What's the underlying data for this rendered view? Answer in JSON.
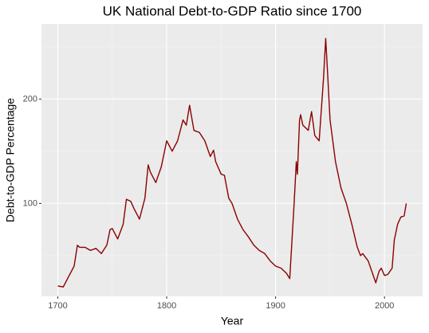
{
  "chart_data": {
    "type": "line",
    "title": "UK National Debt-to-GDP Ratio since 1700",
    "x_label": "Year",
    "y_label": "Debt-to-GDP Percentage",
    "color": "#8b0000",
    "grid": true,
    "xlim": [
      1685,
      2035
    ],
    "ylim": [
      11,
      272
    ],
    "xticks": [
      1700,
      1800,
      1900,
      2000
    ],
    "yticks": [
      100,
      200
    ],
    "xminorticks": [
      1750,
      1850,
      1950
    ],
    "yminorticks": [
      50,
      150,
      250
    ],
    "x": [
      1700,
      1705,
      1710,
      1715,
      1718,
      1720,
      1725,
      1730,
      1735,
      1740,
      1745,
      1748,
      1750,
      1755,
      1760,
      1763,
      1767,
      1770,
      1775,
      1780,
      1783,
      1785,
      1790,
      1795,
      1800,
      1805,
      1810,
      1815,
      1818,
      1821,
      1825,
      1830,
      1835,
      1840,
      1843,
      1845,
      1850,
      1853,
      1857,
      1860,
      1865,
      1870,
      1875,
      1880,
      1885,
      1890,
      1895,
      1900,
      1905,
      1910,
      1913,
      1917,
      1919,
      1920,
      1922,
      1923,
      1925,
      1930,
      1933,
      1936,
      1940,
      1944,
      1946,
      1948,
      1950,
      1955,
      1960,
      1965,
      1970,
      1975,
      1978,
      1980,
      1985,
      1990,
      1992,
      1995,
      1997,
      2000,
      2003,
      2007,
      2009,
      2012,
      2015,
      2018,
      2020
    ],
    "values": [
      21,
      20,
      30,
      40,
      60,
      58,
      58,
      55,
      57,
      52,
      60,
      75,
      76,
      66,
      80,
      104,
      102,
      95,
      85,
      105,
      137,
      130,
      120,
      135,
      160,
      150,
      160,
      180,
      175,
      194,
      170,
      168,
      160,
      145,
      151,
      140,
      128,
      127,
      105,
      100,
      85,
      75,
      68,
      60,
      55,
      52,
      45,
      40,
      38,
      33,
      28,
      100,
      140,
      128,
      180,
      185,
      175,
      170,
      188,
      165,
      160,
      220,
      258,
      220,
      180,
      140,
      115,
      100,
      80,
      58,
      50,
      52,
      45,
      30,
      24,
      35,
      38,
      31,
      32,
      38,
      65,
      80,
      87,
      88,
      100
    ]
  }
}
